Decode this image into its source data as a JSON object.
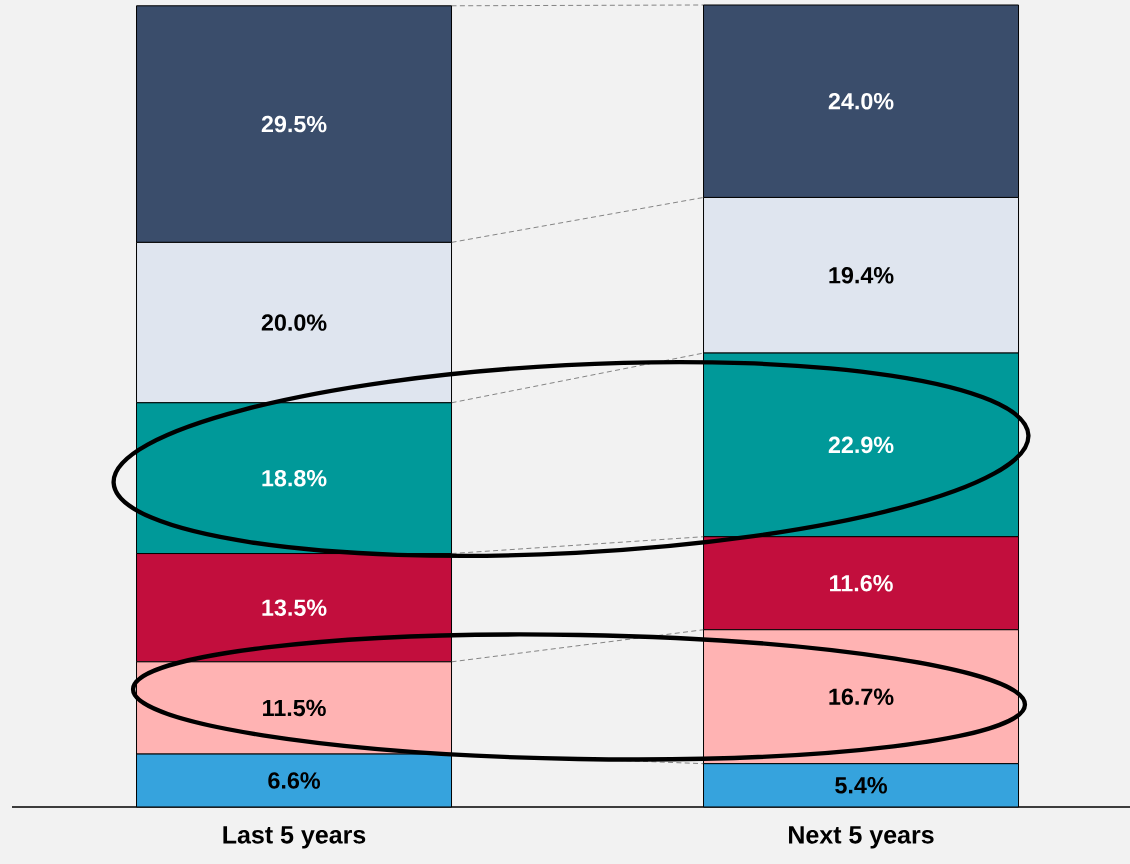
{
  "chart_data": {
    "type": "bar",
    "stacked": true,
    "categories": [
      "Last 5 years",
      "Next 5 years"
    ],
    "series": [
      {
        "color": "#36a3dd",
        "values": [
          6.6,
          5.4
        ],
        "value_labels": [
          "6.6%",
          "5.4%"
        ]
      },
      {
        "color": "#ffb3b3",
        "values": [
          11.5,
          16.7
        ],
        "value_labels": [
          "11.5%",
          "16.7%"
        ]
      },
      {
        "color": "#c20e3d",
        "values": [
          13.5,
          11.6
        ],
        "value_labels": [
          "13.5%",
          "11.6%"
        ]
      },
      {
        "color": "#009999",
        "values": [
          18.8,
          22.9
        ],
        "value_labels": [
          "18.8%",
          "22.9%"
        ]
      },
      {
        "color": "#dfe5ef",
        "values": [
          20.0,
          19.4
        ],
        "value_labels": [
          "20.0%",
          "19.4%"
        ]
      },
      {
        "color": "#3a4d6b",
        "values": [
          29.5,
          24.0
        ],
        "value_labels": [
          "29.5%",
          "24.0%"
        ]
      }
    ]
  }
}
